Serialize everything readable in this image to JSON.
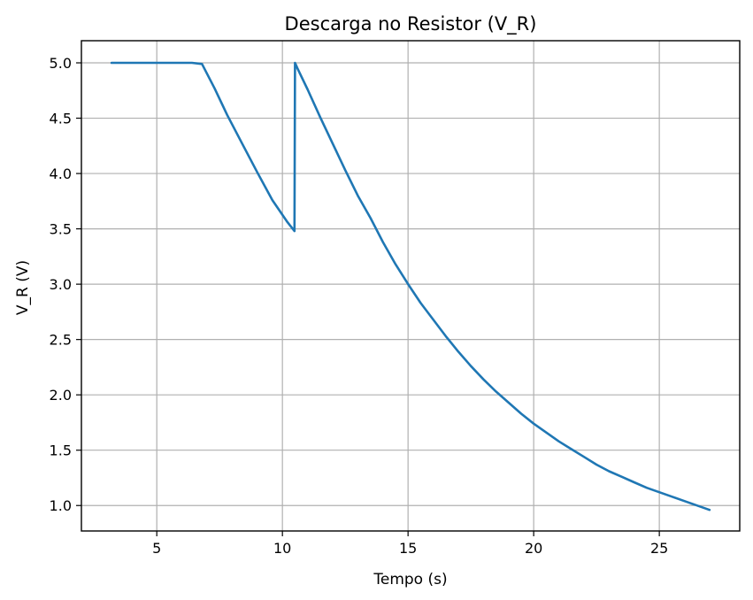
{
  "chart_data": {
    "type": "line",
    "title": "Descarga no Resistor (V_R)",
    "xlabel": "Tempo (s)",
    "ylabel": "V_R (V)",
    "xlim": [
      2.0,
      28.2
    ],
    "ylim": [
      0.77,
      5.2
    ],
    "xticks": [
      5,
      10,
      15,
      20,
      25
    ],
    "yticks": [
      1.0,
      1.5,
      2.0,
      2.5,
      3.0,
      3.5,
      4.0,
      4.5,
      5.0
    ],
    "xtick_labels": [
      "5",
      "10",
      "15",
      "20",
      "25"
    ],
    "ytick_labels": [
      "1.0",
      "1.5",
      "2.0",
      "2.5",
      "3.0",
      "3.5",
      "4.0",
      "4.5",
      "5.0"
    ],
    "grid": true,
    "series": [
      {
        "color": "#1f77b4",
        "x": [
          3.2,
          4.0,
          5.0,
          6.0,
          6.4,
          6.8,
          7.3,
          7.8,
          8.4,
          9.0,
          9.6,
          10.2,
          10.48,
          10.5,
          10.6,
          11.0,
          11.5,
          12.0,
          12.5,
          13.0,
          13.5,
          14.0,
          14.5,
          15.0,
          15.5,
          16.0,
          16.5,
          17.0,
          17.5,
          18.0,
          18.5,
          19.0,
          19.5,
          20.0,
          20.5,
          21.0,
          21.5,
          22.0,
          22.5,
          23.0,
          23.5,
          24.0,
          24.5,
          25.0,
          25.5,
          26.0,
          26.5,
          27.0
        ],
        "y": [
          5.0,
          5.0,
          5.0,
          5.0,
          5.0,
          4.99,
          4.77,
          4.53,
          4.27,
          4.01,
          3.76,
          3.56,
          3.48,
          5.0,
          4.95,
          4.76,
          4.51,
          4.27,
          4.03,
          3.8,
          3.6,
          3.38,
          3.18,
          3.0,
          2.83,
          2.68,
          2.53,
          2.39,
          2.26,
          2.14,
          2.03,
          1.93,
          1.83,
          1.74,
          1.66,
          1.58,
          1.51,
          1.44,
          1.37,
          1.31,
          1.26,
          1.21,
          1.16,
          1.12,
          1.08,
          1.04,
          1.0,
          0.96
        ]
      }
    ]
  }
}
